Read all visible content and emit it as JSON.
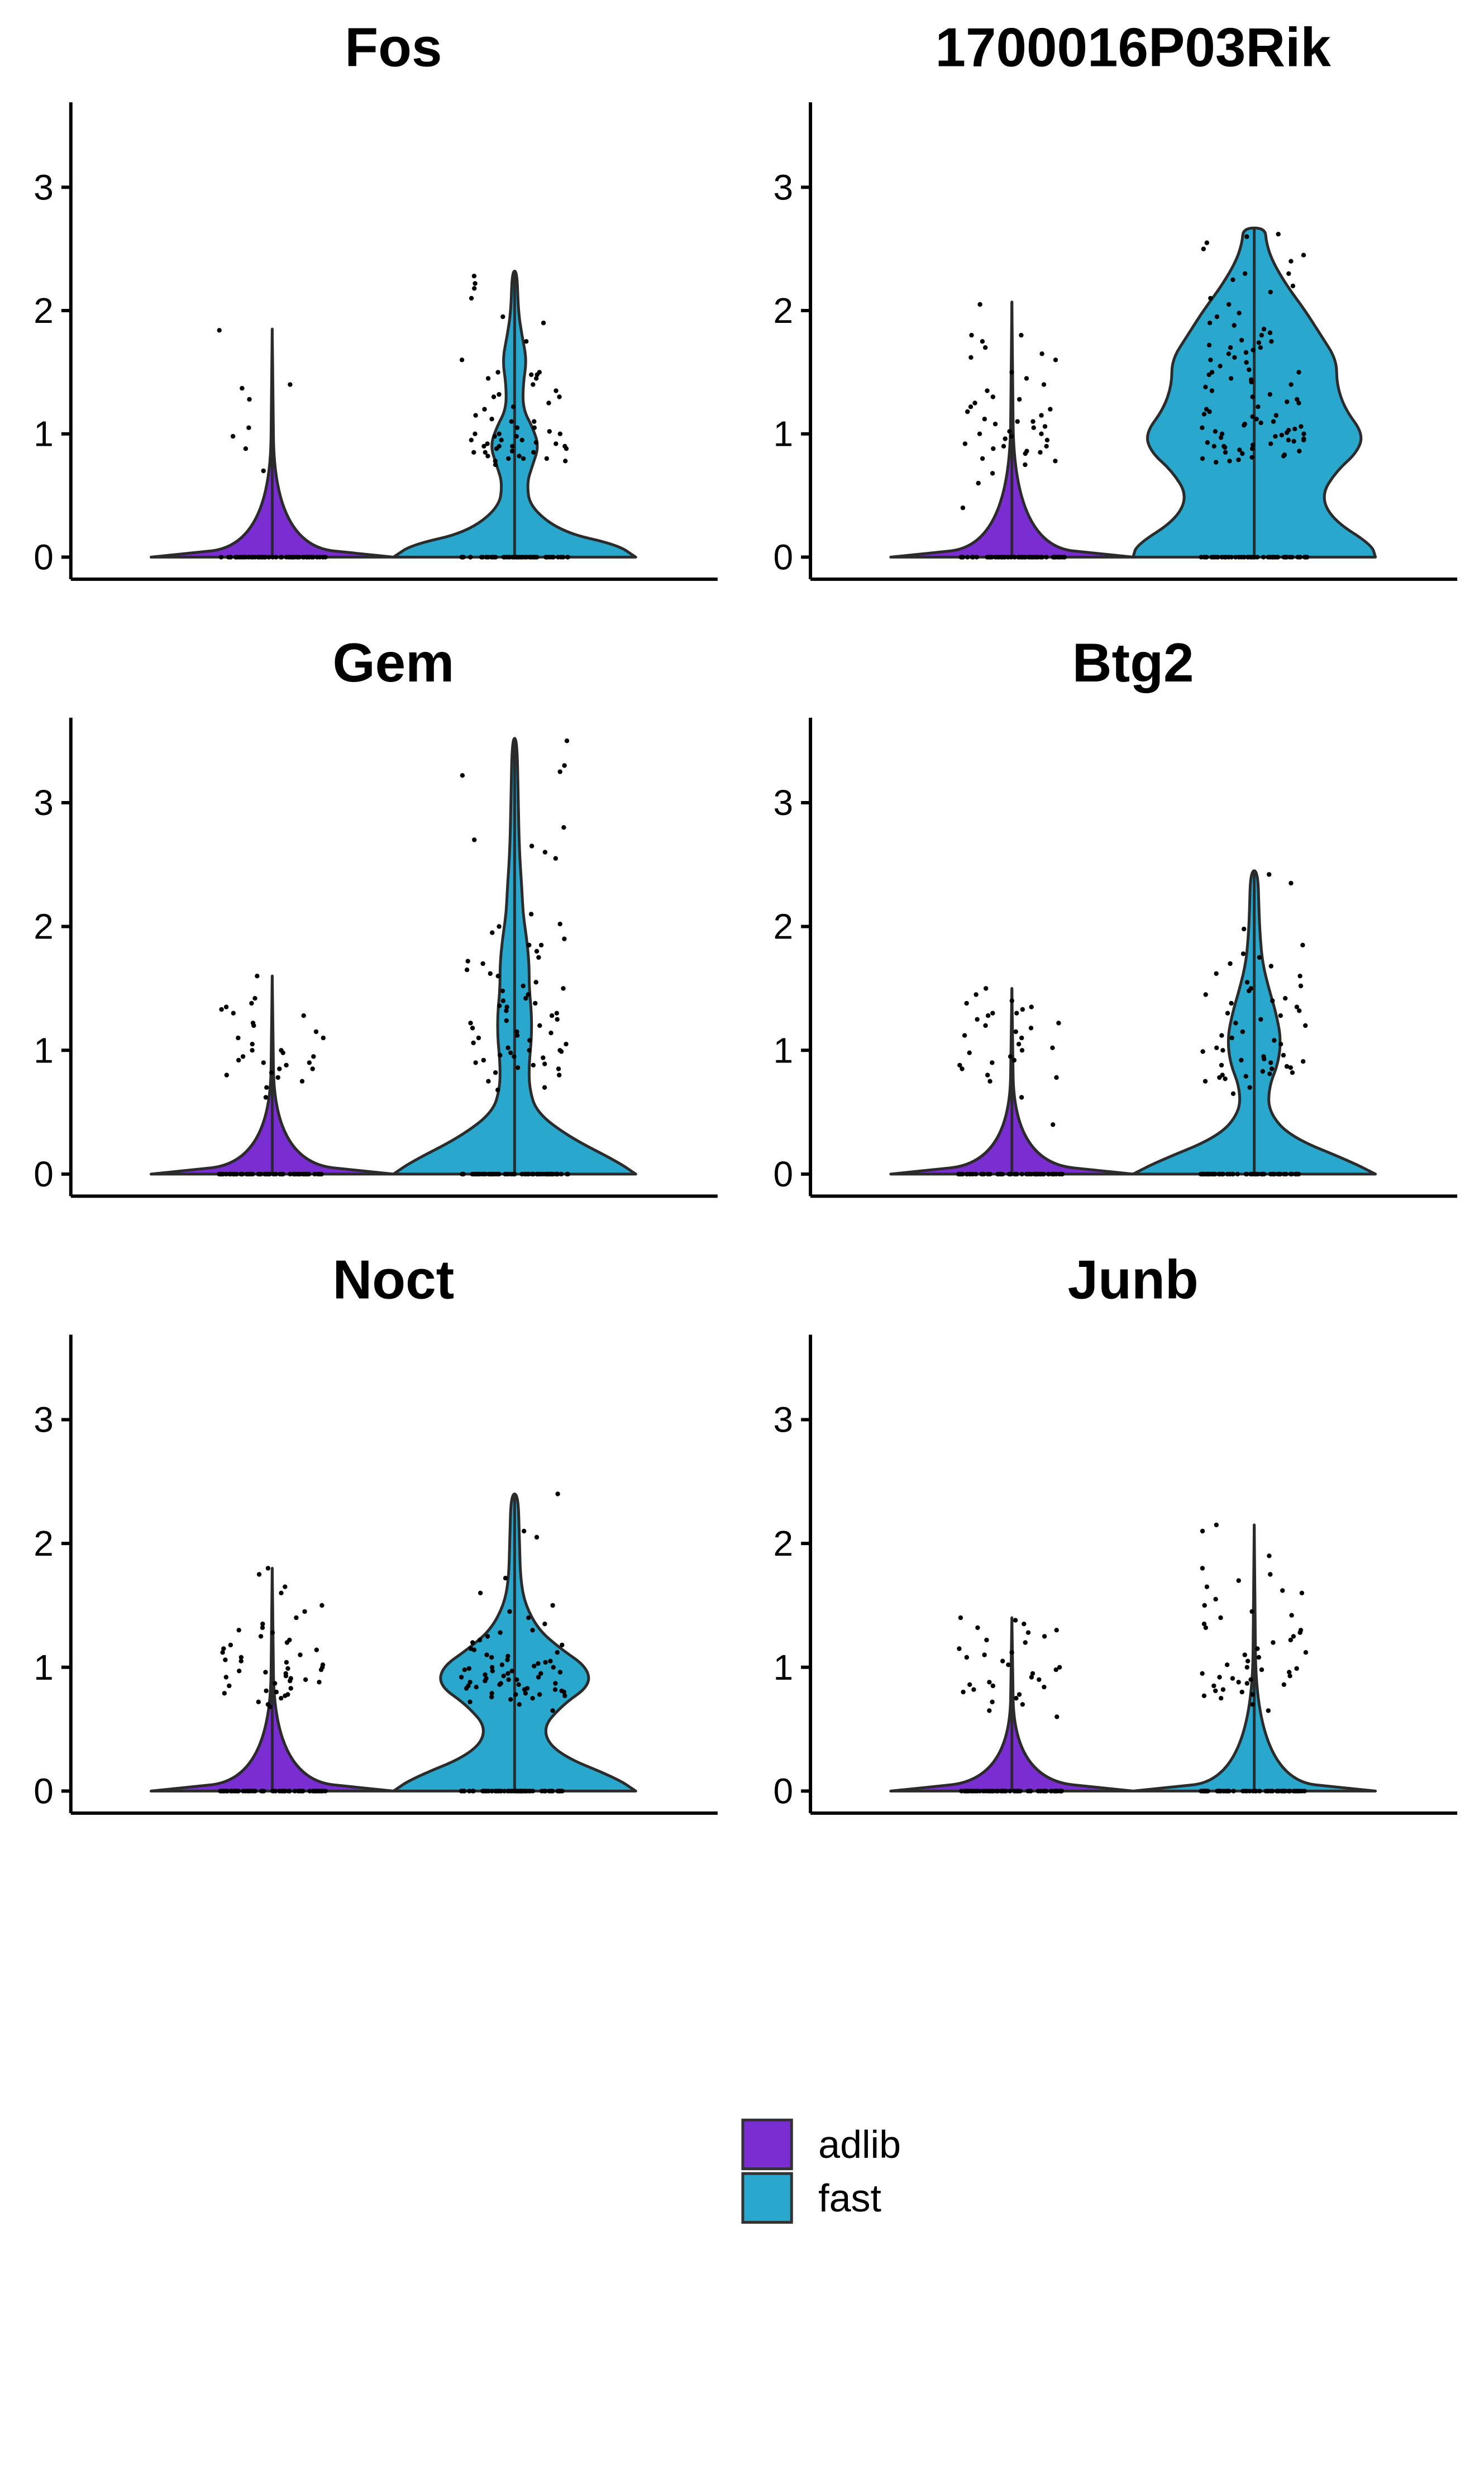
{
  "colors": {
    "adlib": "#7a2ed2",
    "fast": "#2aa7cc",
    "outline": "#2b2b2b",
    "point": "#000000"
  },
  "legend": {
    "items": [
      {
        "label": "adlib",
        "color": "#7a2ed2"
      },
      {
        "label": "fast",
        "color": "#2aa7cc"
      }
    ]
  },
  "chart_data": [
    {
      "type": "violin",
      "title": "Fos",
      "xlabel": "",
      "ylabel": "",
      "ylim": [
        0,
        3.5
      ],
      "yticks": [
        0,
        1,
        2,
        3
      ],
      "groups": [
        {
          "name": "adlib",
          "max": 1.85,
          "nonzero_points": [
            0.88,
            0.98,
            1.4,
            1.84,
            1.28,
            1.05,
            0.7,
            1.37
          ],
          "density": [
            [
              0,
              1
            ],
            [
              0.1,
              0.02
            ],
            [
              1.85,
              0
            ]
          ]
        },
        {
          "name": "fast",
          "max": 2.32,
          "nonzero_points": [
            1.4,
            1.22,
            1.48,
            1.3,
            1.1,
            1.0,
            0.95,
            0.9,
            0.85,
            0.8,
            0.75,
            1.05,
            1.0,
            0.95,
            0.92,
            0.88,
            0.85,
            0.82,
            0.9,
            0.93,
            0.98,
            1.02,
            0.8,
            0.78,
            0.86,
            0.9,
            1.15,
            1.35,
            1.5,
            1.6,
            1.75,
            1.95,
            2.1,
            2.22,
            2.28,
            2.18,
            1.9,
            1.48,
            1.45,
            1.32,
            1.2,
            1.1,
            1.0,
            0.98,
            0.95,
            0.92,
            0.9,
            0.88,
            0.85,
            0.82,
            0.8,
            0.78,
            1.45,
            1.5,
            1.3,
            1.25,
            1.12,
            1.05
          ],
          "density": [
            [
              0,
              1
            ],
            [
              0.1,
              0.85
            ],
            [
              0.2,
              0.4
            ],
            [
              0.4,
              0.13
            ],
            [
              0.6,
              0.1
            ],
            [
              0.75,
              0.15
            ],
            [
              0.9,
              0.2
            ],
            [
              1.05,
              0.15
            ],
            [
              1.2,
              0.07
            ],
            [
              1.4,
              0.07
            ],
            [
              1.6,
              0.1
            ],
            [
              1.8,
              0.06
            ],
            [
              2.0,
              0.03
            ],
            [
              2.32,
              0.02
            ]
          ]
        }
      ]
    },
    {
      "type": "violin",
      "title": "1700016P03Rik",
      "xlabel": "",
      "ylabel": "",
      "ylim": [
        0,
        3.5
      ],
      "yticks": [
        0,
        1,
        2,
        3
      ],
      "groups": [
        {
          "name": "adlib",
          "max": 2.07,
          "nonzero_points": [
            2.05,
            1.8,
            1.75,
            1.6,
            1.4,
            1.35,
            1.3,
            1.2,
            1.15,
            1.1,
            1.05,
            1.0,
            0.95,
            0.9,
            0.85,
            0.8,
            1.25,
            1.18,
            1.12,
            1.08,
            1.02,
            0.98,
            0.92,
            0.88,
            0.84,
            0.78,
            0.6,
            0.4,
            1.7,
            1.65,
            1.5,
            1.45,
            1.28,
            1.22,
            1.06,
            0.96,
            0.86,
            0.75,
            0.68,
            1.62,
            1.8,
            1.1,
            1.0,
            0.9
          ],
          "density": [
            [
              0,
              1
            ],
            [
              0.1,
              0.02
            ],
            [
              2.07,
              0
            ]
          ]
        },
        {
          "name": "fast",
          "max": 2.67,
          "nonzero_points": [
            2.62,
            2.55,
            2.5,
            2.4,
            2.3,
            2.2,
            2.15,
            2.05,
            1.95,
            1.9,
            1.85,
            1.8,
            1.75,
            1.72,
            1.7,
            1.65,
            1.6,
            1.55,
            1.5,
            1.45,
            1.4,
            1.35,
            1.3,
            1.25,
            1.2,
            1.15,
            1.1,
            1.08,
            1.05,
            1.02,
            1.0,
            0.98,
            0.95,
            0.92,
            0.9,
            0.88,
            0.85,
            0.82,
            0.8,
            0.78,
            1.88,
            1.76,
            1.66,
            1.58,
            1.48,
            1.38,
            1.28,
            1.18,
            1.12,
            1.06,
            1.01,
            0.97,
            0.93,
            0.89,
            0.86,
            0.83,
            0.79,
            2.45,
            2.25,
            2.1,
            1.98,
            1.82,
            1.68,
            1.52,
            1.42,
            1.32,
            1.22,
            1.16,
            1.09,
            1.04,
            0.99,
            0.94,
            0.87,
            0.81,
            0.77,
            1.74,
            1.62,
            1.44,
            1.26,
            1.14,
            1.07,
            1.03,
            0.96,
            0.91,
            0.84,
            2.6,
            2.3,
            1.7,
            1.5,
            1.0,
            0.95,
            0.9
          ],
          "density": [
            [
              0,
              1
            ],
            [
              0.1,
              0.97
            ],
            [
              0.3,
              0.65
            ],
            [
              0.5,
              0.55
            ],
            [
              0.7,
              0.68
            ],
            [
              0.85,
              0.85
            ],
            [
              1.0,
              0.9
            ],
            [
              1.2,
              0.75
            ],
            [
              1.4,
              0.68
            ],
            [
              1.6,
              0.68
            ],
            [
              1.8,
              0.55
            ],
            [
              2.0,
              0.42
            ],
            [
              2.2,
              0.27
            ],
            [
              2.4,
              0.15
            ],
            [
              2.55,
              0.1
            ],
            [
              2.67,
              0.09
            ]
          ]
        }
      ]
    },
    {
      "type": "violin",
      "title": "Gem",
      "xlabel": "",
      "ylabel": "",
      "ylim": [
        0,
        3.5
      ],
      "yticks": [
        0,
        1,
        2,
        3
      ],
      "groups": [
        {
          "name": "adlib",
          "max": 1.6,
          "nonzero_points": [
            1.6,
            1.42,
            1.35,
            1.3,
            1.2,
            1.1,
            1.0,
            0.95,
            0.9,
            0.85,
            0.8,
            0.75,
            0.7,
            0.62,
            1.38,
            1.28,
            1.15,
            1.05,
            0.98,
            0.92,
            0.88,
            0.82,
            0.78,
            1.33,
            1.22,
            1.0,
            0.9,
            0.95,
            1.1,
            0.85
          ],
          "density": [
            [
              0,
              1
            ],
            [
              0.1,
              0.02
            ],
            [
              1.6,
              0
            ]
          ]
        },
        {
          "name": "fast",
          "max": 3.52,
          "nonzero_points": [
            3.5,
            3.3,
            3.25,
            3.22,
            2.8,
            2.7,
            2.65,
            2.6,
            2.55,
            2.1,
            2.0,
            1.95,
            1.9,
            1.85,
            1.8,
            1.75,
            1.7,
            1.6,
            1.55,
            1.5,
            1.45,
            1.4,
            1.35,
            1.3,
            1.25,
            1.2,
            1.15,
            1.1,
            1.05,
            1.0,
            0.98,
            0.95,
            0.9,
            0.88,
            0.85,
            0.8,
            0.75,
            0.7,
            1.85,
            1.72,
            1.62,
            1.52,
            1.42,
            1.32,
            1.22,
            1.12,
            1.02,
            0.96,
            0.92,
            0.86,
            2.02,
            1.65,
            1.38,
            1.28,
            1.18,
            1.08,
            0.99,
            0.94,
            0.89,
            0.82,
            0.68,
            1.48,
            1.36,
            1.24,
            1.14,
            1.06,
            1.0
          ],
          "density": [
            [
              0,
              1
            ],
            [
              0.1,
              0.85
            ],
            [
              0.3,
              0.45
            ],
            [
              0.5,
              0.18
            ],
            [
              0.7,
              0.12
            ],
            [
              0.9,
              0.12
            ],
            [
              1.1,
              0.14
            ],
            [
              1.3,
              0.14
            ],
            [
              1.5,
              0.12
            ],
            [
              1.7,
              0.12
            ],
            [
              1.9,
              0.1
            ],
            [
              2.1,
              0.07
            ],
            [
              2.3,
              0.06
            ],
            [
              2.6,
              0.04
            ],
            [
              3.0,
              0.03
            ],
            [
              3.52,
              0.02
            ]
          ]
        }
      ]
    },
    {
      "type": "violin",
      "title": "Btg2",
      "xlabel": "",
      "ylabel": "",
      "ylim": [
        0,
        3.5
      ],
      "yticks": [
        0,
        1,
        2,
        3
      ],
      "groups": [
        {
          "name": "adlib",
          "max": 1.5,
          "nonzero_points": [
            1.5,
            1.4,
            1.35,
            1.3,
            1.25,
            1.2,
            1.1,
            1.0,
            0.95,
            0.9,
            0.8,
            0.75,
            0.62,
            0.4,
            1.45,
            1.33,
            1.22,
            1.15,
            1.05,
            0.98,
            0.92,
            0.85,
            0.78,
            1.38,
            1.28,
            1.12,
            1.02,
            0.88,
            1.3,
            1.18
          ],
          "density": [
            [
              0,
              1
            ],
            [
              0.1,
              0.02
            ],
            [
              1.5,
              0
            ]
          ]
        },
        {
          "name": "fast",
          "max": 2.45,
          "nonzero_points": [
            2.42,
            2.35,
            1.98,
            1.85,
            1.78,
            1.75,
            1.7,
            1.62,
            1.55,
            1.5,
            1.45,
            1.4,
            1.35,
            1.3,
            1.25,
            1.2,
            1.15,
            1.1,
            1.05,
            1.0,
            0.95,
            0.92,
            0.9,
            0.88,
            0.85,
            0.82,
            0.8,
            0.78,
            0.75,
            0.7,
            0.65,
            1.52,
            1.42,
            1.32,
            1.22,
            1.12,
            1.02,
            0.96,
            0.91,
            0.86,
            0.81,
            0.77,
            1.68,
            1.48,
            1.28,
            1.08,
            0.99,
            0.93,
            0.87,
            0.83,
            0.79,
            1.6,
            1.38
          ],
          "density": [
            [
              0,
              1
            ],
            [
              0.1,
              0.8
            ],
            [
              0.3,
              0.3
            ],
            [
              0.5,
              0.12
            ],
            [
              0.7,
              0.12
            ],
            [
              0.9,
              0.2
            ],
            [
              1.1,
              0.22
            ],
            [
              1.3,
              0.18
            ],
            [
              1.5,
              0.12
            ],
            [
              1.7,
              0.07
            ],
            [
              1.9,
              0.05
            ],
            [
              2.1,
              0.04
            ],
            [
              2.45,
              0.03
            ]
          ]
        }
      ]
    },
    {
      "type": "violin",
      "title": "Noct",
      "xlabel": "",
      "ylabel": "",
      "ylim": [
        0,
        3.5
      ],
      "yticks": [
        0,
        1,
        2,
        3
      ],
      "groups": [
        {
          "name": "adlib",
          "max": 1.8,
          "nonzero_points": [
            1.8,
            1.75,
            1.65,
            1.6,
            1.5,
            1.45,
            1.35,
            1.3,
            1.25,
            1.2,
            1.15,
            1.1,
            1.05,
            1.0,
            0.98,
            0.95,
            0.92,
            0.9,
            0.88,
            0.85,
            0.8,
            0.78,
            0.75,
            0.72,
            0.7,
            1.28,
            1.18,
            1.12,
            1.08,
            1.02,
            0.97,
            0.93,
            0.87,
            0.83,
            0.77,
            0.68,
            1.4,
            1.22,
            1.06,
            0.99,
            0.91,
            0.81,
            1.32,
            1.14,
            1.04,
            0.96,
            0.89,
            0.79
          ],
          "density": [
            [
              0,
              1
            ],
            [
              0.1,
              0.02
            ],
            [
              1.8,
              0
            ]
          ]
        },
        {
          "name": "fast",
          "max": 2.4,
          "nonzero_points": [
            2.4,
            2.1,
            2.05,
            1.72,
            1.6,
            1.5,
            1.45,
            1.4,
            1.3,
            1.25,
            1.2,
            1.15,
            1.1,
            1.05,
            1.02,
            1.0,
            0.98,
            0.96,
            0.95,
            0.93,
            0.92,
            0.9,
            0.88,
            0.87,
            0.85,
            0.84,
            0.82,
            0.8,
            0.78,
            0.76,
            0.75,
            0.72,
            0.7,
            0.65,
            1.08,
            1.04,
            1.01,
            0.99,
            0.97,
            0.94,
            0.91,
            0.89,
            0.86,
            0.83,
            0.81,
            0.79,
            0.77,
            1.18,
            1.12,
            1.06,
            1.0,
            0.95,
            0.9,
            0.86,
            0.82,
            0.78,
            1.35,
            1.28,
            1.22,
            1.14,
            1.09,
            1.03,
            0.97,
            0.92,
            0.87,
            0.83,
            0.79,
            0.74
          ],
          "density": [
            [
              0,
              1
            ],
            [
              0.1,
              0.85
            ],
            [
              0.3,
              0.35
            ],
            [
              0.5,
              0.22
            ],
            [
              0.7,
              0.4
            ],
            [
              0.85,
              0.62
            ],
            [
              1.0,
              0.6
            ],
            [
              1.15,
              0.38
            ],
            [
              1.3,
              0.2
            ],
            [
              1.5,
              0.09
            ],
            [
              1.7,
              0.05
            ],
            [
              2.0,
              0.04
            ],
            [
              2.4,
              0.03
            ]
          ]
        }
      ]
    },
    {
      "type": "violin",
      "title": "Junb",
      "xlabel": "",
      "ylabel": "",
      "ylim": [
        0,
        3.5
      ],
      "yticks": [
        0,
        1,
        2,
        3
      ],
      "groups": [
        {
          "name": "adlib",
          "max": 1.4,
          "nonzero_points": [
            1.4,
            1.35,
            1.3,
            1.25,
            1.2,
            1.15,
            1.1,
            1.05,
            1.0,
            0.95,
            0.9,
            0.88,
            0.85,
            0.8,
            0.75,
            0.7,
            0.65,
            0.6,
            1.32,
            1.22,
            1.12,
            1.02,
            0.92,
            0.86,
            0.82,
            0.78,
            1.38,
            1.28,
            1.08,
            0.98,
            0.84,
            0.72
          ],
          "density": [
            [
              0,
              1
            ],
            [
              0.1,
              0.02
            ],
            [
              1.4,
              0
            ]
          ]
        },
        {
          "name": "fast",
          "max": 2.15,
          "nonzero_points": [
            2.15,
            2.1,
            1.9,
            1.8,
            1.75,
            1.7,
            1.65,
            1.6,
            1.5,
            1.45,
            1.4,
            1.35,
            1.3,
            1.25,
            1.2,
            1.15,
            1.1,
            1.05,
            1.0,
            0.98,
            0.95,
            0.92,
            0.9,
            0.88,
            0.85,
            0.82,
            0.8,
            0.78,
            0.75,
            0.7,
            0.65,
            1.55,
            1.42,
            1.32,
            1.22,
            1.12,
            1.02,
            0.96,
            0.91,
            0.86,
            0.81,
            0.77,
            1.62,
            1.28,
            1.08,
            0.99,
            0.93,
            0.87
          ],
          "density": [
            [
              0,
              1
            ],
            [
              0.1,
              0.02
            ],
            [
              2.15,
              0
            ]
          ]
        }
      ]
    }
  ]
}
